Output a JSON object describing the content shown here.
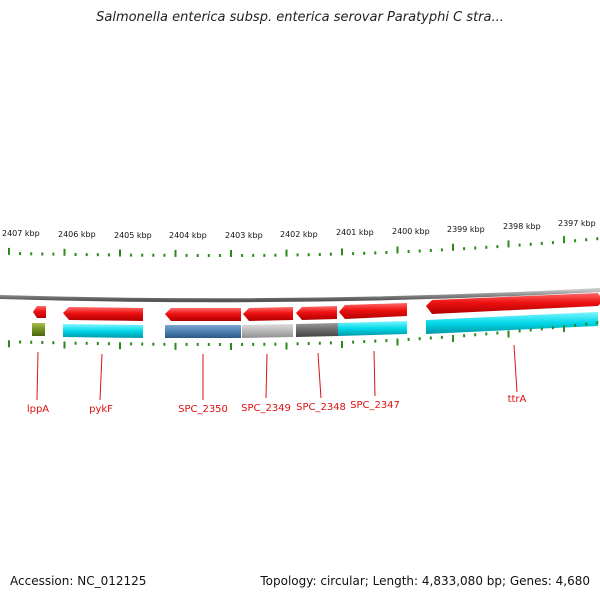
{
  "title": "Salmonella enterica subsp. enterica serovar Paratyphi C stra...",
  "footer": {
    "accession": "Accession: NC_012125",
    "info": "Topology: circular; Length: 4,833,080 bp; Genes: 4,680"
  },
  "colors": {
    "backbone": "#8a8a8a",
    "tick": "#2a8a1a",
    "gene_arrow": "#ee1111",
    "label": "#dd1111",
    "cyan": "#00d8e8",
    "blue": "#4a7fb0",
    "lightgray": "#b8b8b8",
    "darkgray": "#6a6a6a",
    "olive": "#6f8f20"
  },
  "scale_labels": [
    "2407 kbp",
    "2406 kbp",
    "2405 kbp",
    "2404 kbp",
    "2403 kbp",
    "2402 kbp",
    "2401 kbp",
    "2400 kbp",
    "2399 kbp",
    "2398 kbp",
    "2397 kbp"
  ],
  "genes": [
    {
      "name": "lppA",
      "label": "lppA",
      "strand": "reverse"
    },
    {
      "name": "pykF",
      "label": "pykF",
      "strand": "reverse"
    },
    {
      "name": "SPC_2350",
      "label": "SPC_2350",
      "strand": "reverse"
    },
    {
      "name": "SPC_2349",
      "label": "SPC_2349",
      "strand": "reverse"
    },
    {
      "name": "SPC_2348",
      "label": "SPC_2348",
      "strand": "reverse"
    },
    {
      "name": "SPC_2347",
      "label": "SPC_2347",
      "strand": "reverse"
    },
    {
      "name": "ttrA",
      "label": "ttrA",
      "strand": "reverse"
    }
  ]
}
